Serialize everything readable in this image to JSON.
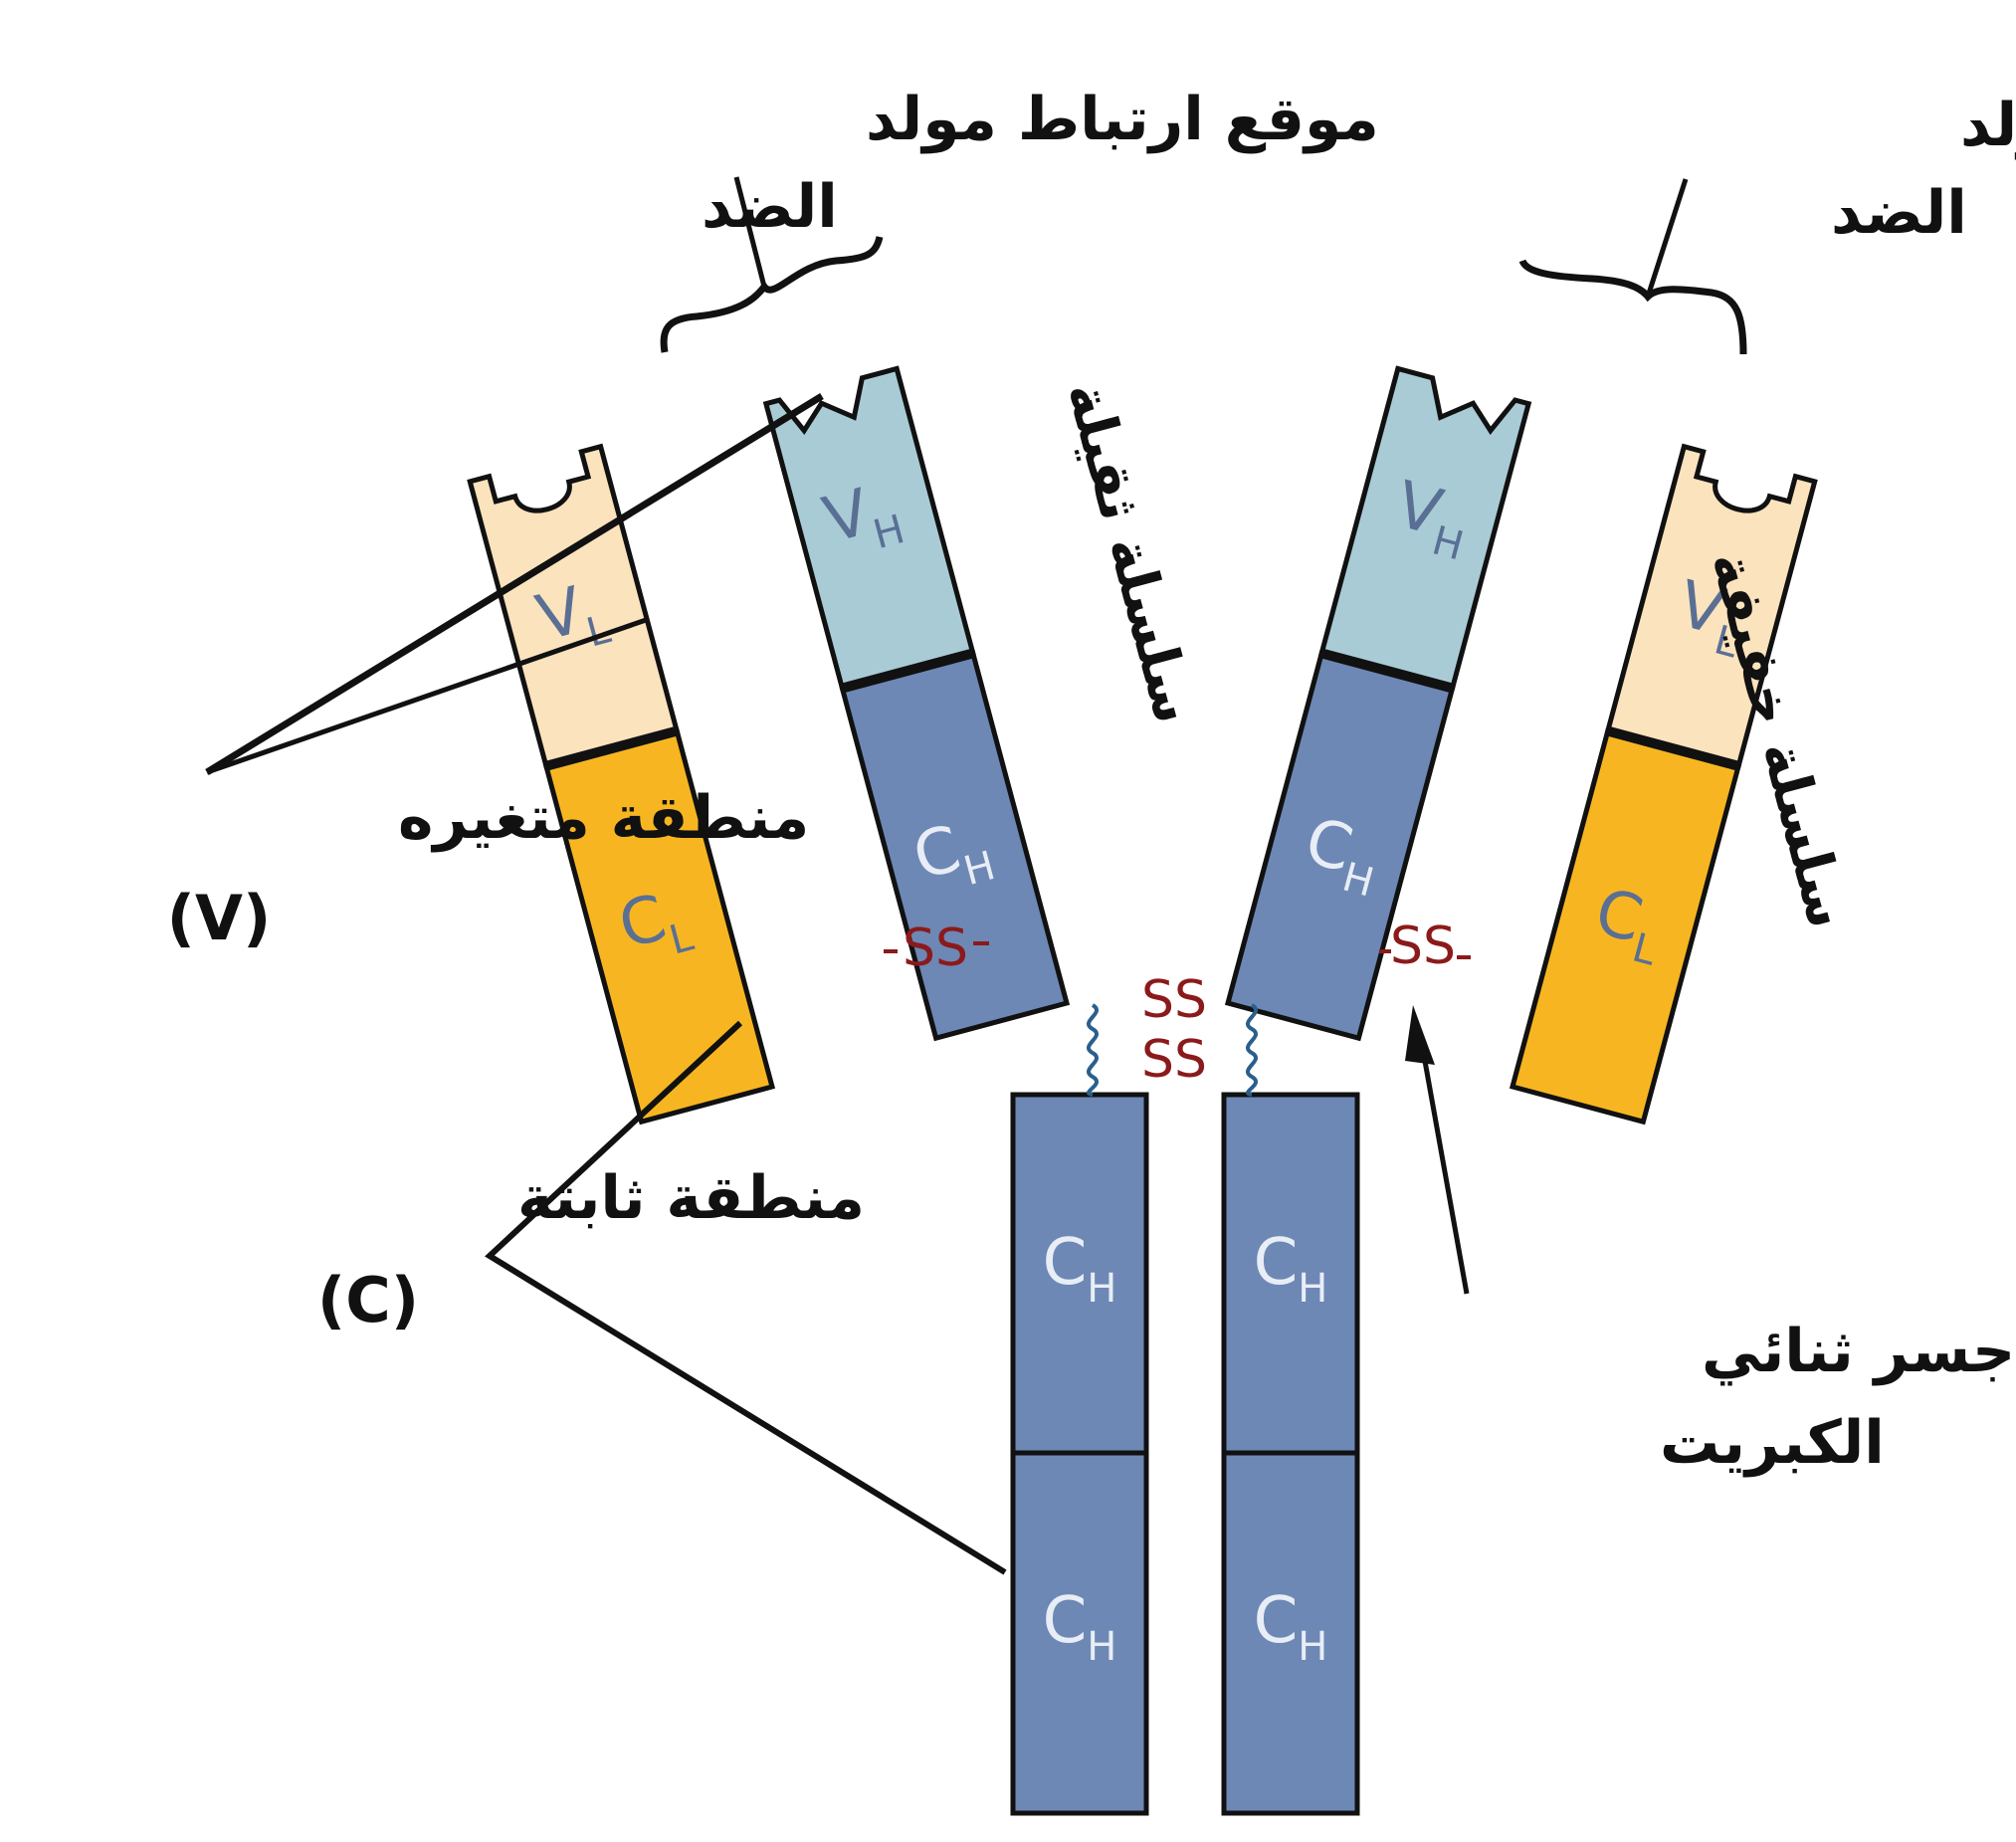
{
  "labels": {
    "antigen_site_left_line1": "موقع ارتباط مولد",
    "antigen_site_left_line2": "الضد",
    "antigen_site_right_line1": "موقع ارتباط مولد",
    "antigen_site_right_line2": "الضد",
    "heavy_chain": "سلسلة ثقيلة",
    "light_chain": "سلسلة خفيفة",
    "variable_region": "منطقة متغيره",
    "variable_symbol": "(V)",
    "constant_region": "منطقة ثابتة",
    "constant_symbol": "(C)",
    "disulfide_line1": "جسر ثنائي",
    "disulfide_line2": "الكبريت"
  },
  "domains": {
    "vh": "V",
    "vh_sub": "H",
    "vl": "V",
    "vl_sub": "L",
    "ch": "C",
    "ch_sub": "H",
    "cl": "C",
    "cl_sub": "L"
  },
  "bonds": {
    "ss": "SS"
  },
  "colors": {
    "vh": "#a9cbd6",
    "ch": "#6d88b5",
    "vl": "#fbe3bd",
    "cl": "#f7b621",
    "outline": "#111111",
    "ss": "#8b1a1a",
    "hinge": "#2a5f8c",
    "domain_text_light": "#e8edf6",
    "domain_text_dark": "#5a6f94"
  }
}
